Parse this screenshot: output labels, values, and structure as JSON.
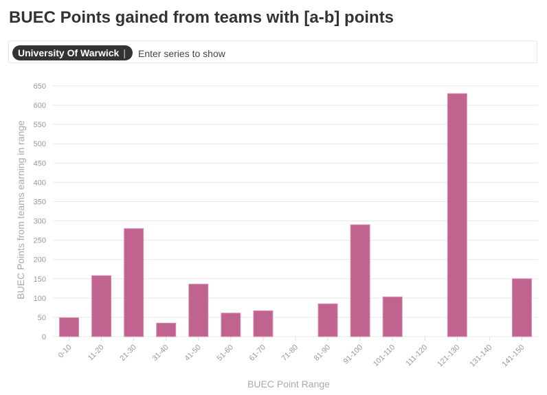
{
  "title": "BUEC Points gained from teams with [a-b] points",
  "series_selector": {
    "selected": [
      "University Of Warwick"
    ],
    "separator": "|",
    "placeholder": "Enter series to show"
  },
  "chart_data": {
    "type": "bar",
    "title": "BUEC Points gained from teams with [a-b] points",
    "xlabel": "BUEC Point Range",
    "ylabel": "BUEC Points from teams earning in range",
    "categories": [
      "0-10",
      "11-20",
      "21-30",
      "31-40",
      "41-50",
      "51-60",
      "61-70",
      "71-80",
      "81-90",
      "91-100",
      "101-110",
      "111-120",
      "121-130",
      "131-140",
      "141-150"
    ],
    "series": [
      {
        "name": "University Of Warwick",
        "values": [
          49,
          158,
          280,
          35,
          136,
          61,
          67,
          0,
          85,
          290,
          103,
          0,
          630,
          0,
          150
        ],
        "color": "#c0638f"
      }
    ],
    "ylim": [
      0,
      650
    ],
    "yticks": [
      0,
      50,
      100,
      150,
      200,
      250,
      300,
      350,
      400,
      450,
      500,
      550,
      600,
      650
    ],
    "grid": true
  }
}
